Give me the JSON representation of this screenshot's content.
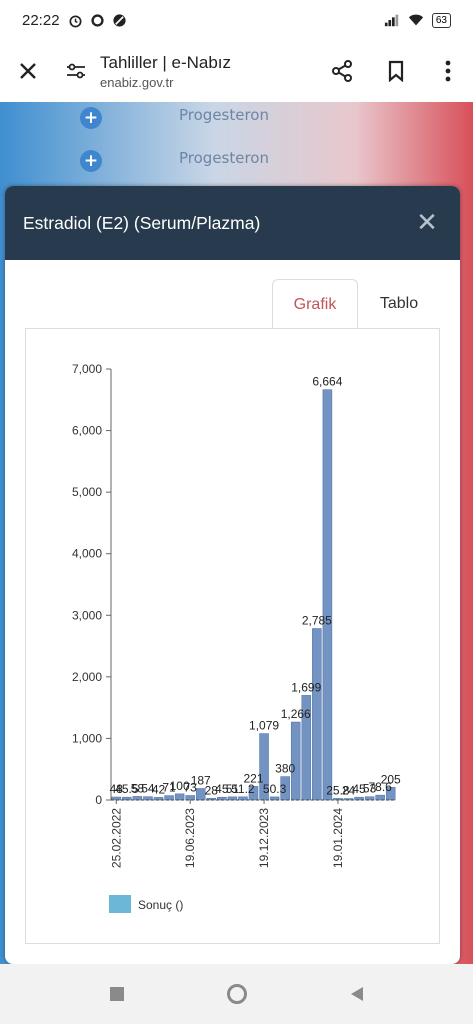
{
  "status": {
    "time": "22:22",
    "battery": "63",
    "icons_left": [
      "alarm-icon",
      "whatsapp-icon",
      "blocked-icon"
    ],
    "icons_right": [
      "signal-icon",
      "wifi-icon",
      "battery-icon"
    ]
  },
  "browser": {
    "title": "Tahliller | e-Nabız",
    "url": "enabiz.gov.tr"
  },
  "background_rows": [
    {
      "label": "Progesteron"
    },
    {
      "label": "Progesteron"
    }
  ],
  "modal": {
    "title": "Estradiol (E2) (Serum/Plazma)",
    "close": "✕",
    "tabs": [
      {
        "label": "Grafik",
        "active": true
      },
      {
        "label": "Tablo",
        "active": false
      }
    ]
  },
  "colors": {
    "bar_fill": "#6c8fbf",
    "bar_stroke": "#4f74a8",
    "legend_swatch": "#6ab7d8",
    "header_bg": "#283a4d",
    "tab_active": "#c0555a"
  },
  "chart_data": {
    "type": "bar",
    "ylim": [
      0,
      7000
    ],
    "yticks": [
      "0",
      "1,000",
      "2,000",
      "3,000",
      "4,000",
      "5,000",
      "6,000",
      "7,000"
    ],
    "ytick_values": [
      0,
      1000,
      2000,
      3000,
      4000,
      5000,
      6000,
      7000
    ],
    "x_tick_labels": [
      {
        "index": 0,
        "label": "25.02.2022"
      },
      {
        "index": 7,
        "label": "19.06.2023"
      },
      {
        "index": 14,
        "label": "19.12.2023"
      },
      {
        "index": 21,
        "label": "19.01.2024"
      }
    ],
    "values": [
      48,
      45.5,
      58,
      54,
      42,
      71,
      100,
      73,
      187,
      28,
      45,
      51,
      51.2,
      221,
      1079,
      50.3,
      380,
      1266,
      1699,
      2785,
      6664,
      25.8,
      24,
      45,
      53,
      78.6,
      205
    ],
    "data_labels": [
      "48",
      "45.5",
      "58",
      "54",
      "42",
      "71",
      "100",
      "73",
      "187",
      "28",
      "45",
      "51",
      "51.2",
      "221",
      "1,079",
      "50.3",
      "380",
      "1,266",
      "1,699",
      "2,785",
      "6,664",
      "25.8",
      "24",
      "45",
      "53",
      "78.6",
      "205"
    ],
    "grid": false,
    "legend": {
      "position": "bottom-left",
      "label": "Sonuç ()"
    }
  },
  "nav": [
    "square-nav-icon",
    "home-circle-icon",
    "back-triangle-icon"
  ]
}
